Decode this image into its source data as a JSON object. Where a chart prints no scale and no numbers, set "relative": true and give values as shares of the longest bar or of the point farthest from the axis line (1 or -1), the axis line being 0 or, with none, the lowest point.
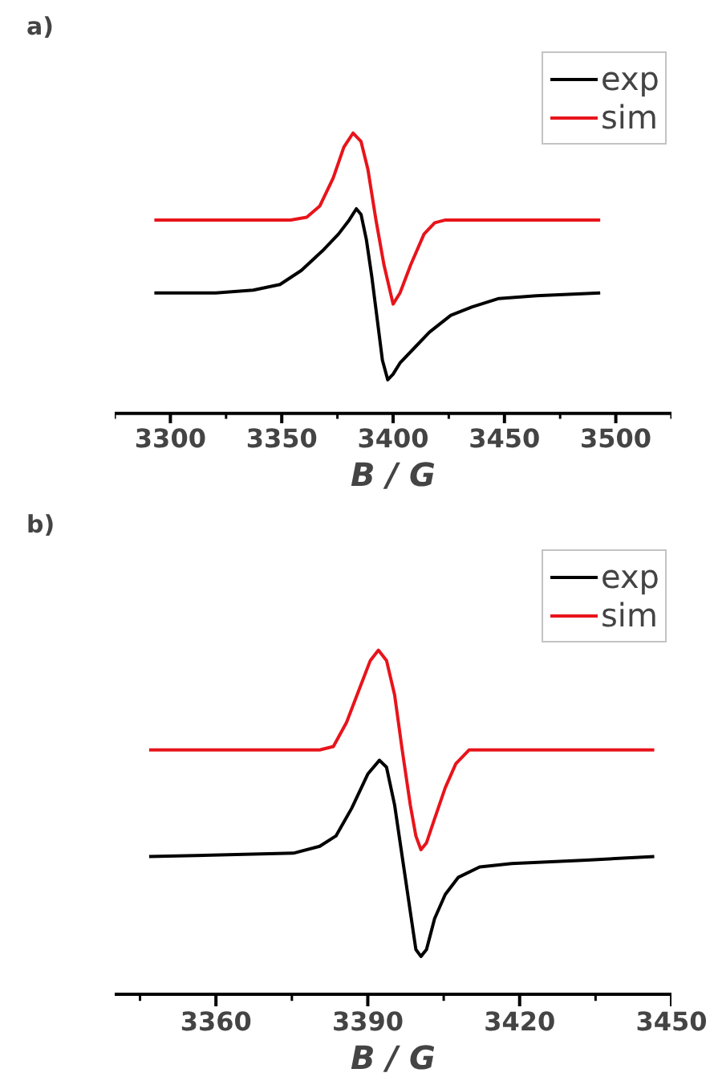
{
  "chart_data": [
    {
      "type": "line",
      "title": "a)",
      "xlabel": "B / G",
      "relative": true,
      "legend": "top right",
      "grid": false,
      "tick_labels": "x",
      "xlim": [
        3275,
        3525
      ],
      "xticks": [
        3300,
        3350,
        3400,
        3450,
        3500
      ],
      "series": [
        {
          "name": "exp",
          "color": "#000000",
          "x": [
            3292.8,
            3320.4,
            3337.2,
            3349.2,
            3358.8,
            3368.3,
            3375.5,
            3380.3,
            3383.5,
            3385.6,
            3388.0,
            3390.4,
            3392.8,
            3395.2,
            3397.6,
            3400.0,
            3403.1,
            3409.1,
            3416.3,
            3425.9,
            3435.5,
            3447.5,
            3464.3,
            3493.0
          ],
          "values": [
            0.43,
            0.43,
            0.44,
            0.46,
            0.51,
            0.58,
            0.64,
            0.69,
            0.73,
            0.71,
            0.62,
            0.49,
            0.34,
            0.19,
            0.12,
            0.14,
            0.18,
            0.23,
            0.29,
            0.35,
            0.38,
            0.41,
            0.42,
            0.43
          ]
        },
        {
          "name": "sim",
          "color": "#e8141b",
          "x": [
            3292.8,
            3354.0,
            3361.2,
            3367.1,
            3373.1,
            3377.9,
            3382.0,
            3385.6,
            3388.7,
            3392.3,
            3395.9,
            3400.0,
            3403.1,
            3407.9,
            3413.9,
            3418.7,
            3423.5,
            3493.0
          ],
          "values": [
            0.69,
            0.69,
            0.7,
            0.74,
            0.84,
            0.95,
            1.0,
            0.97,
            0.87,
            0.69,
            0.53,
            0.39,
            0.43,
            0.53,
            0.64,
            0.68,
            0.69,
            0.69
          ]
        }
      ]
    },
    {
      "type": "line",
      "title": "b)",
      "xlabel": "B / G",
      "relative": true,
      "legend": "top right",
      "grid": false,
      "tick_labels": "x",
      "xlim": [
        3340,
        3450
      ],
      "xticks": [
        3360,
        3390,
        3420,
        3450
      ],
      "series": [
        {
          "name": "exp",
          "color": "#000000",
          "x": [
            3346.8,
            3375.3,
            3380.5,
            3383.7,
            3386.8,
            3390.0,
            3392.3,
            3393.7,
            3395.3,
            3396.8,
            3398.4,
            3399.5,
            3400.5,
            3401.6,
            3403.2,
            3405.3,
            3407.9,
            3412.1,
            3418.4,
            3433.2,
            3446.6
          ],
          "values": [
            0.4,
            0.41,
            0.43,
            0.46,
            0.54,
            0.64,
            0.68,
            0.66,
            0.55,
            0.4,
            0.24,
            0.13,
            0.11,
            0.13,
            0.22,
            0.29,
            0.34,
            0.37,
            0.38,
            0.39,
            0.4
          ]
        },
        {
          "name": "sim",
          "color": "#e8141b",
          "x": [
            3346.8,
            3380.5,
            3383.2,
            3385.8,
            3388.4,
            3390.5,
            3392.1,
            3393.7,
            3395.3,
            3396.8,
            3398.4,
            3399.5,
            3400.5,
            3401.6,
            3403.2,
            3405.3,
            3407.4,
            3410.0,
            3412.1,
            3446.6
          ],
          "values": [
            0.71,
            0.71,
            0.72,
            0.79,
            0.89,
            0.97,
            1.0,
            0.97,
            0.87,
            0.71,
            0.55,
            0.46,
            0.42,
            0.44,
            0.51,
            0.6,
            0.67,
            0.71,
            0.71,
            0.71
          ]
        }
      ]
    }
  ]
}
